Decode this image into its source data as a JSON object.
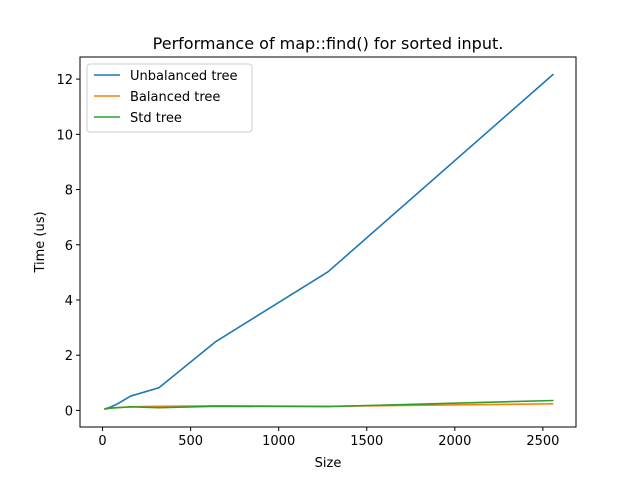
{
  "chart_data": {
    "type": "line",
    "title": "Performance of map::find() for sorted input.",
    "xlabel": "Size",
    "ylabel": "Time (us)",
    "xlim": [
      -128,
      2688
    ],
    "ylim": [
      -0.6,
      12.8
    ],
    "xticks": [
      0,
      500,
      1000,
      1500,
      2000,
      2500
    ],
    "yticks": [
      0,
      2,
      4,
      6,
      8,
      10,
      12
    ],
    "grid": false,
    "legend_position": "top-left",
    "series": [
      {
        "name": "Unbalanced tree",
        "color": "#1f77b4",
        "x": [
          10,
          20,
          40,
          80,
          160,
          320,
          640,
          1280,
          2560
        ],
        "y": [
          0.05,
          0.07,
          0.11,
          0.22,
          0.52,
          0.82,
          2.48,
          5.02,
          12.18
        ]
      },
      {
        "name": "Balanced tree",
        "color": "#ff7f0e",
        "x": [
          10,
          20,
          40,
          80,
          160,
          320,
          640,
          1280,
          2560
        ],
        "y": [
          0.05,
          0.06,
          0.08,
          0.1,
          0.13,
          0.15,
          0.17,
          0.15,
          0.24
        ]
      },
      {
        "name": "Std tree",
        "color": "#2ca02c",
        "x": [
          10,
          20,
          40,
          80,
          160,
          320,
          640,
          1280,
          2560
        ],
        "y": [
          0.05,
          0.06,
          0.08,
          0.1,
          0.13,
          0.1,
          0.15,
          0.14,
          0.36
        ]
      }
    ]
  }
}
